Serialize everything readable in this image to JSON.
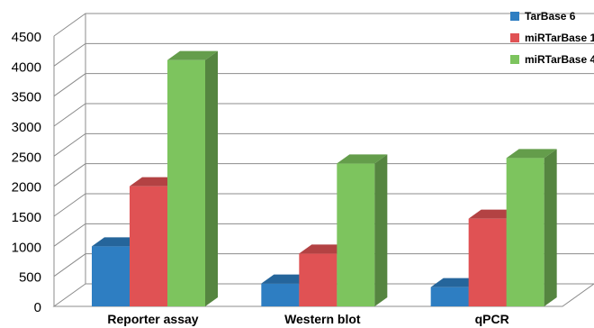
{
  "chart_data": {
    "type": "bar",
    "three_d": true,
    "title": "",
    "xlabel": "",
    "ylabel": "",
    "ylim": [
      0,
      4500
    ],
    "y_ticks": [
      "0",
      "500",
      "1000",
      "1500",
      "2000",
      "2500",
      "3000",
      "3500",
      "4000",
      "4500"
    ],
    "grid": true,
    "legend_position": "top-right",
    "categories": [
      "Reporter assay",
      "Western blot",
      "qPCR"
    ],
    "series": [
      {
        "name": "TarBase 6",
        "color": "#2e7ec2",
        "values": [
          1000,
          380,
          320
        ]
      },
      {
        "name": "miRTarBase 1",
        "color": "#e05254",
        "values": [
          2000,
          880,
          1460
        ]
      },
      {
        "name": "miRTarBase 4",
        "color": "#7dc45e",
        "values": [
          4100,
          2380,
          2470
        ]
      }
    ]
  }
}
